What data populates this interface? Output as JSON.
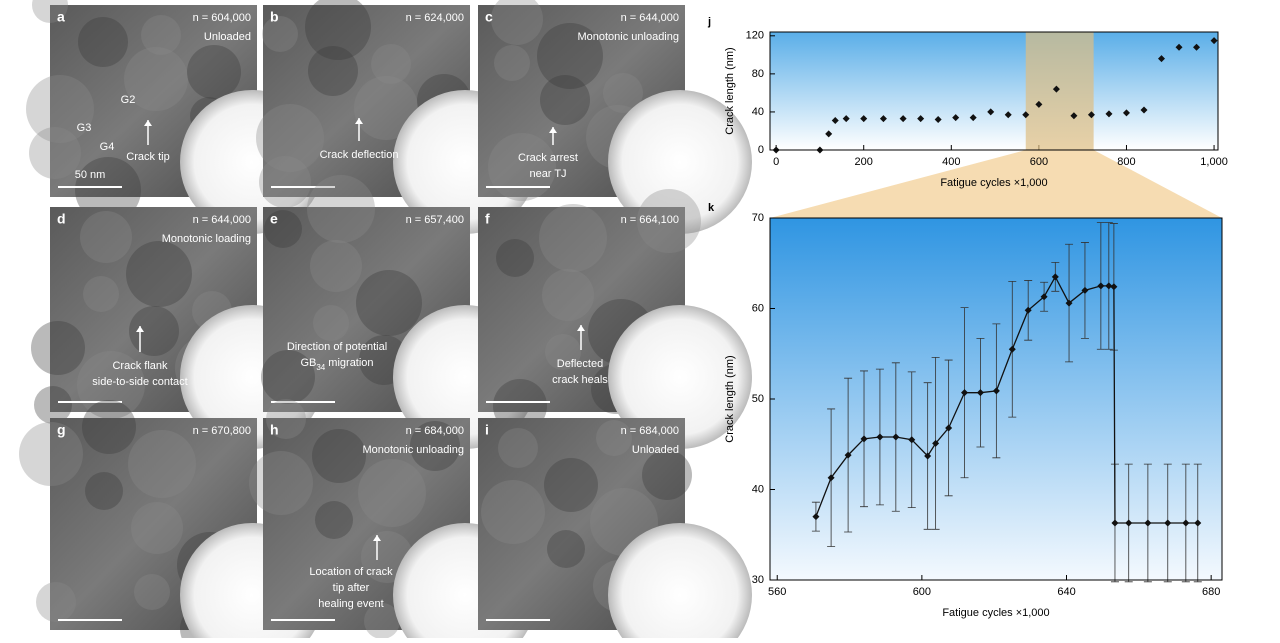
{
  "panels": [
    {
      "letter": "a",
      "count": "n = 604,000",
      "state": "Unloaded",
      "notes": [
        [
          "G2"
        ],
        [
          "G3"
        ],
        [
          "G4"
        ],
        [
          "Crack tip"
        ]
      ],
      "scale": "50 nm"
    },
    {
      "letter": "b",
      "count": "n = 624,000",
      "notes": [
        [
          "Crack deflection"
        ]
      ]
    },
    {
      "letter": "c",
      "count": "n = 644,000",
      "state": "Monotonic unloading",
      "notes": [
        [
          "Crack arrest",
          "near TJ"
        ]
      ]
    },
    {
      "letter": "d",
      "count": "n = 644,000",
      "state": "Monotonic loading",
      "notes": [
        [
          "Crack flank",
          "side-to-side contact"
        ]
      ]
    },
    {
      "letter": "e",
      "count": "n = 657,400",
      "notes": [
        [
          "Direction of potential",
          [
            "GB",
            "34",
            " migration"
          ]
        ]
      ]
    },
    {
      "letter": "f",
      "count": "n = 664,100",
      "notes": [
        [
          "Deflected",
          "crack heals"
        ]
      ]
    },
    {
      "letter": "g",
      "count": "n = 670,800",
      "notes": []
    },
    {
      "letter": "h",
      "count": "n = 684,000",
      "state": "Monotonic unloading",
      "notes": [
        [
          "Location of crack",
          "tip after",
          "healing event"
        ]
      ]
    },
    {
      "letter": "i",
      "count": "n = 684,000",
      "state": "Unloaded",
      "notes": []
    }
  ],
  "chart_data": [
    {
      "type": "scatter",
      "label": "j",
      "xlabel": "Fatigue cycles ×1,000",
      "ylabel": "Crack length (nm)",
      "x": [
        0,
        100,
        120,
        135,
        160,
        200,
        245,
        290,
        330,
        370,
        410,
        450,
        490,
        530,
        570,
        600,
        640,
        680,
        720,
        760,
        800,
        840,
        880,
        920,
        960,
        1000
      ],
      "values": [
        0,
        0,
        17,
        31,
        33,
        33,
        33,
        33,
        33,
        32,
        34,
        34,
        40,
        37,
        37,
        48,
        64,
        36,
        37,
        38,
        39,
        42,
        96,
        108,
        108,
        115
      ],
      "color": "#111111",
      "highlight_x": [
        570,
        725
      ],
      "xlim": [
        -14,
        1009
      ],
      "ylim": [
        0,
        124
      ],
      "xticks": [
        0,
        200,
        400,
        600,
        800,
        {
          "value": 1000,
          "label": "1,000"
        }
      ],
      "yticks": [
        0,
        40,
        80,
        120
      ]
    },
    {
      "type": "errorline",
      "label": "k",
      "xlabel": "Fatigue cycles ×1,000",
      "ylabel": "Crack length (nm)",
      "x": [
        570.7,
        574.9,
        579.6,
        584,
        588.4,
        592.8,
        597.2,
        601.6,
        603.8,
        607.4,
        611.8,
        616.2,
        620.6,
        625,
        629.4,
        633.8,
        636.9,
        640.7,
        645.1,
        649.5,
        651.7,
        653.1,
        653.4,
        657.2,
        662.5,
        668,
        673,
        676.3
      ],
      "values": [
        37,
        41.3,
        43.8,
        45.6,
        45.8,
        45.8,
        45.5,
        43.7,
        45.1,
        46.8,
        50.7,
        50.7,
        50.9,
        55.5,
        59.8,
        61.3,
        63.5,
        60.6,
        62,
        62.5,
        62.5,
        62.4,
        36.3,
        36.3,
        36.3,
        36.3,
        36.3,
        36.3
      ],
      "errors": [
        1.6,
        7.6,
        8.5,
        7.5,
        7.5,
        8.2,
        7.5,
        8.1,
        9.5,
        7.5,
        9.4,
        6,
        7.4,
        7.5,
        3.3,
        1.6,
        1.6,
        6.5,
        5.3,
        7,
        7,
        7,
        6.5,
        6.5,
        6.5,
        6.5,
        6.5,
        6.5
      ],
      "color": "#111111",
      "xlim": [
        558,
        683
      ],
      "ylim": [
        30,
        70
      ],
      "xticks": [
        560,
        600,
        640,
        680
      ],
      "yticks": [
        30,
        40,
        50,
        60,
        70
      ]
    }
  ]
}
